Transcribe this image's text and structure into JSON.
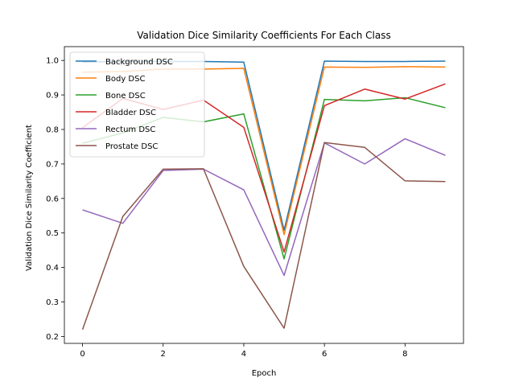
{
  "chart_data": {
    "type": "line",
    "title": "Validation Dice Similarity Coefficients For Each Class",
    "xlabel": "Epoch",
    "ylabel": "Validation Dice Similarity Coefficient",
    "x": [
      0,
      1,
      2,
      3,
      4,
      5,
      6,
      7,
      8,
      9
    ],
    "xlim": [
      -0.45,
      9.45
    ],
    "ylim": [
      0.18,
      1.04
    ],
    "xticks": [
      0,
      2,
      4,
      6,
      8
    ],
    "yticks": [
      0.2,
      0.3,
      0.4,
      0.5,
      0.6,
      0.7,
      0.8,
      0.9,
      1.0
    ],
    "xtick_labels": [
      "0",
      "2",
      "4",
      "6",
      "8"
    ],
    "ytick_labels": [
      "0.2",
      "0.3",
      "0.4",
      "0.5",
      "0.6",
      "0.7",
      "0.8",
      "0.9",
      "1.0"
    ],
    "grid": false,
    "legend_position": "top-left",
    "series": [
      {
        "name": "Background DSC",
        "color": "#1f77b4",
        "values": [
          0.995,
          0.997,
          0.997,
          0.997,
          0.995,
          0.508,
          0.998,
          0.997,
          0.997,
          0.998
        ]
      },
      {
        "name": "Body DSC",
        "color": "#ff7f0e",
        "values": [
          0.966,
          0.968,
          0.975,
          0.975,
          0.977,
          0.495,
          0.981,
          0.98,
          0.982,
          0.981
        ]
      },
      {
        "name": "Bone DSC",
        "color": "#2ca02c",
        "values": [
          0.76,
          0.79,
          0.835,
          0.822,
          0.845,
          0.425,
          0.887,
          0.883,
          0.892,
          0.863
        ]
      },
      {
        "name": "Bladder DSC",
        "color": "#d62728",
        "values": [
          0.805,
          0.89,
          0.858,
          0.885,
          0.806,
          0.445,
          0.869,
          0.917,
          0.888,
          0.932
        ]
      },
      {
        "name": "Rectum DSC",
        "color": "#9467bd",
        "values": [
          0.567,
          0.528,
          0.681,
          0.685,
          0.625,
          0.377,
          0.761,
          0.7,
          0.773,
          0.725
        ]
      },
      {
        "name": "Prostate DSC",
        "color": "#8c564b",
        "values": [
          0.22,
          0.548,
          0.685,
          0.686,
          0.403,
          0.224,
          0.762,
          0.748,
          0.651,
          0.649
        ]
      }
    ]
  }
}
